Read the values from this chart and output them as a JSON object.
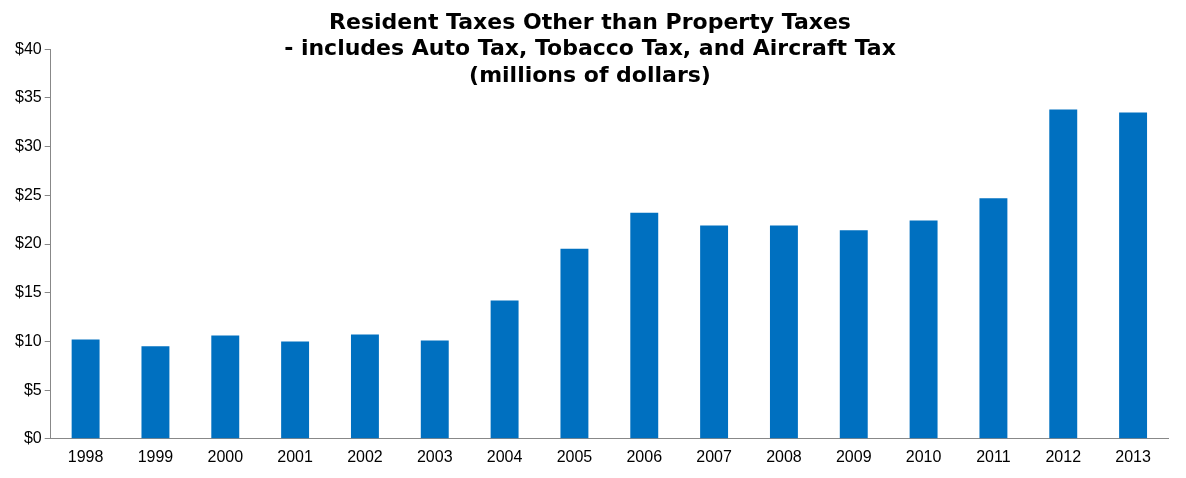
{
  "chart_data": {
    "type": "bar",
    "title": "Resident Taxes Other than Property Taxes\n- includes Auto Tax, Tobacco Tax, and Aircraft Tax\n(millions of dollars)",
    "categories": [
      "1998",
      "1999",
      "2000",
      "2001",
      "2002",
      "2003",
      "2004",
      "2005",
      "2006",
      "2007",
      "2008",
      "2009",
      "2010",
      "2011",
      "2012",
      "2013"
    ],
    "values": [
      10.2,
      9.5,
      10.6,
      10.0,
      10.7,
      10.1,
      14.2,
      19.5,
      23.2,
      21.9,
      21.9,
      21.4,
      22.4,
      24.7,
      33.8,
      33.5
    ],
    "color": "#0070c0",
    "ylim": [
      0,
      40
    ],
    "yticks": [
      {
        "value": 0,
        "label": "$0"
      },
      {
        "value": 5,
        "label": "$5"
      },
      {
        "value": 10,
        "label": "$10"
      },
      {
        "value": 15,
        "label": "$15"
      },
      {
        "value": 20,
        "label": "$20"
      },
      {
        "value": 25,
        "label": "$25"
      },
      {
        "value": 30,
        "label": "$30"
      },
      {
        "value": 35,
        "label": "$35"
      },
      {
        "value": 40,
        "label": "$40"
      }
    ],
    "grid": false,
    "legend": false
  }
}
